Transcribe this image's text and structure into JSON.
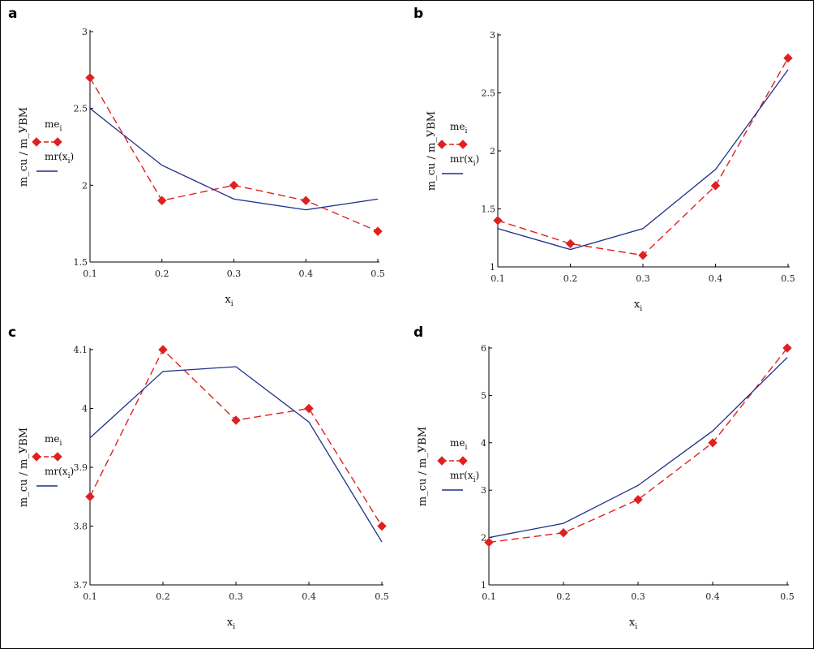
{
  "panel_letters": [
    "a",
    "b",
    "c",
    "d"
  ],
  "colors": {
    "measured": "#e02020",
    "regression": "#1c2f8c",
    "axis": "#000000"
  },
  "chart_data": [
    {
      "type": "line",
      "panel": "a",
      "xlabel": "x",
      "xlabel_sub": "i",
      "ylabel": "m_cu / m_УВМ",
      "x": [
        0.1,
        0.2,
        0.3,
        0.4,
        0.5
      ],
      "xlim": [
        0.1,
        0.5
      ],
      "ylim": [
        1.5,
        3
      ],
      "xticks": [
        "0.1",
        "0.2",
        "0.3",
        "0.4",
        "0.5"
      ],
      "yticks": [
        1.5,
        2,
        2.5,
        3
      ],
      "ytick_labels": [
        "1.5",
        "2",
        "2.5",
        "3"
      ],
      "legend": [
        {
          "base": "me",
          "sub": "i",
          "arg": ""
        },
        {
          "base": "mr",
          "sub": "",
          "arg": "x",
          "argsub": "i"
        }
      ],
      "series": [
        {
          "name": "me_i",
          "style": "dashed-diamond",
          "values": [
            2.7,
            1.9,
            2.0,
            1.9,
            1.7
          ]
        },
        {
          "name": "mr(x_i)",
          "style": "solid",
          "values": [
            2.5,
            2.13,
            1.91,
            1.84,
            1.91
          ]
        }
      ]
    },
    {
      "type": "line",
      "panel": "b",
      "xlabel": "x",
      "xlabel_sub": "i",
      "ylabel": "m_cu / m_УВМ",
      "x": [
        0.1,
        0.2,
        0.3,
        0.4,
        0.5
      ],
      "xlim": [
        0.1,
        0.5
      ],
      "ylim": [
        1,
        3
      ],
      "xticks": [
        "0.1",
        "0.2",
        "0.3",
        "0.4",
        "0.5"
      ],
      "yticks": [
        1,
        1.5,
        2,
        2.5,
        3
      ],
      "ytick_labels": [
        "1",
        "1.5",
        "2",
        "2.5",
        "3"
      ],
      "legend": [
        {
          "base": "me",
          "sub": "i",
          "arg": ""
        },
        {
          "base": "mr",
          "sub": "",
          "arg": "x",
          "argsub": "i"
        }
      ],
      "series": [
        {
          "name": "me_i",
          "style": "dashed-diamond",
          "values": [
            1.4,
            1.2,
            1.1,
            1.7,
            2.8
          ]
        },
        {
          "name": "mr(x_i)",
          "style": "solid",
          "values": [
            1.33,
            1.15,
            1.33,
            1.84,
            2.7
          ]
        }
      ]
    },
    {
      "type": "line",
      "panel": "c",
      "xlabel": "x",
      "xlabel_sub": "i",
      "ylabel": "m_cu / m_УВМ",
      "x": [
        0.1,
        0.2,
        0.3,
        0.4,
        0.5
      ],
      "xlim": [
        0.1,
        0.5
      ],
      "ylim": [
        3.7,
        4.1
      ],
      "xticks": [
        "0.1",
        "0.2",
        "0.3",
        "0.4",
        "0.5"
      ],
      "yticks": [
        3.7,
        3.8,
        3.9,
        4.0,
        4.1
      ],
      "ytick_labels": [
        "3.7",
        "3.8",
        "3.9",
        "4",
        "4.1"
      ],
      "legend": [
        {
          "base": "me",
          "sub": "i",
          "arg": ""
        },
        {
          "base": "mr",
          "sub": "",
          "arg": "x",
          "argsub": "i"
        }
      ],
      "series": [
        {
          "name": "me_i",
          "style": "dashed-diamond",
          "values": [
            3.85,
            4.1,
            3.98,
            4.0,
            3.8
          ]
        },
        {
          "name": "mr(x_i)",
          "style": "solid",
          "values": [
            3.95,
            4.063,
            4.071,
            3.977,
            3.773
          ]
        }
      ]
    },
    {
      "type": "line",
      "panel": "d",
      "xlabel": "x",
      "xlabel_sub": "i",
      "ylabel": "m_cu / m_УВМ",
      "x": [
        0.1,
        0.2,
        0.3,
        0.4,
        0.5
      ],
      "xlim": [
        0.1,
        0.5
      ],
      "ylim": [
        1,
        6
      ],
      "xticks": [
        "0.1",
        "0.2",
        "0.3",
        "0.4",
        "0.5"
      ],
      "yticks": [
        1,
        2,
        3,
        4,
        5,
        6
      ],
      "ytick_labels": [
        "1",
        "2",
        "3",
        "4",
        "5",
        "6"
      ],
      "legend": [
        {
          "base": "me",
          "sub": "i",
          "arg": ""
        },
        {
          "base": "mr",
          "sub": "",
          "arg": "x",
          "argsub": "i"
        }
      ],
      "series": [
        {
          "name": "me_i",
          "style": "dashed-diamond",
          "values": [
            1.9,
            2.1,
            2.8,
            4.0,
            6.0
          ]
        },
        {
          "name": "mr(x_i)",
          "style": "solid",
          "values": [
            2.0,
            2.3,
            3.1,
            4.25,
            5.8
          ]
        }
      ]
    }
  ]
}
